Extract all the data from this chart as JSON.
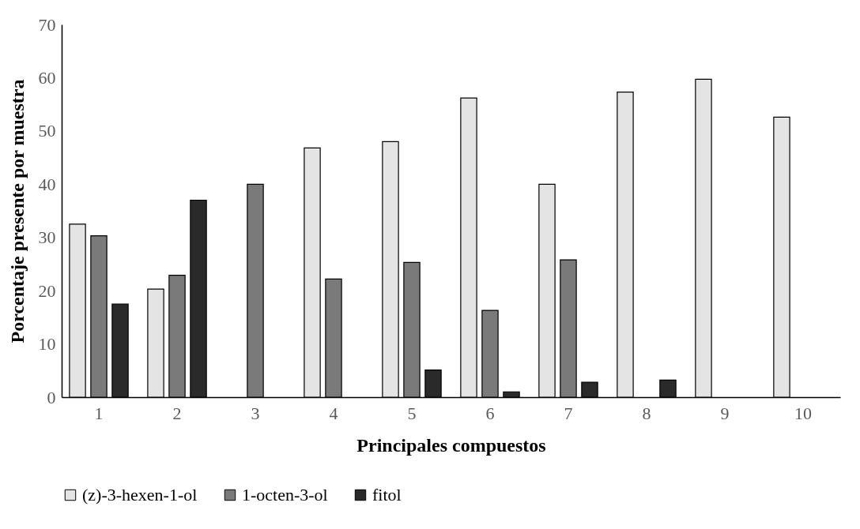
{
  "chart_data": {
    "type": "bar",
    "xlabel": "Principales compuestos",
    "ylabel": "Porcentaje presente por muestra",
    "categories": [
      "1",
      "2",
      "3",
      "4",
      "5",
      "6",
      "7",
      "8",
      "9",
      "10"
    ],
    "series": [
      {
        "name": "(z)-3-hexen-1-ol",
        "color": "#e4e4e4",
        "values": [
          32.5,
          20.3,
          null,
          46.8,
          48,
          56.2,
          40,
          57.3,
          59.7,
          52.6
        ]
      },
      {
        "name": "1-octen-3-ol",
        "color": "#7a7a7a",
        "values": [
          30.3,
          22.9,
          40,
          22.2,
          25.3,
          16.3,
          25.8,
          null,
          null,
          null
        ]
      },
      {
        "name": "fitol",
        "color": "#2a2a2a",
        "values": [
          17.5,
          37,
          null,
          null,
          5.1,
          1,
          2.8,
          3.2,
          null,
          null
        ]
      }
    ],
    "ylim": [
      0,
      70
    ],
    "yticks": [
      0,
      10,
      20,
      30,
      40,
      50,
      60,
      70
    ],
    "grid": false,
    "legend": "bottom"
  }
}
